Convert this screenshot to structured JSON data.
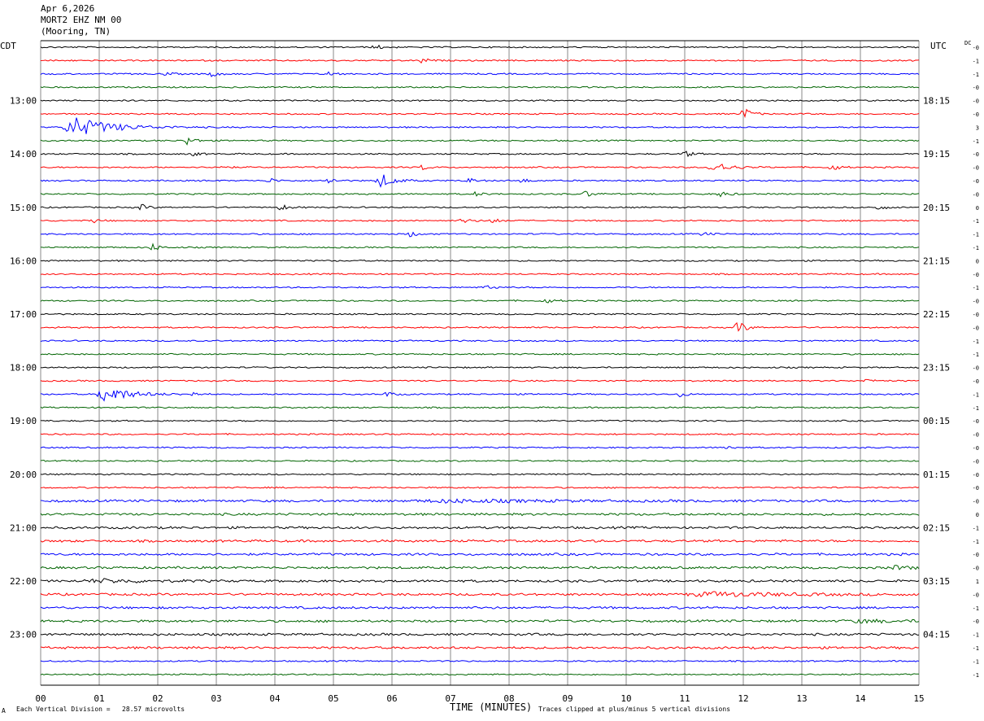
{
  "header": {
    "date": "Apr 6,2026",
    "station": "MORT2 EHZ NM 00",
    "location": "(Mooring, TN)"
  },
  "left_tz": "CDT",
  "right_tz": "UTC",
  "dc_label": "DC",
  "footer": {
    "scale_note": "Each Vertical Division =   28.57 microvolts",
    "clip_note": "Traces clipped at plus/minus 5 vertical divisions",
    "corner_mark": "A"
  },
  "colors": {
    "trace_cycle": [
      "#000000",
      "#ff0000",
      "#0000ff",
      "#006400"
    ],
    "grid": "#888888"
  },
  "chart_data": {
    "type": "line",
    "title": "",
    "xlabel": "TIME (MINUTES)",
    "x_ticks": [
      "00",
      "01",
      "02",
      "03",
      "04",
      "05",
      "06",
      "07",
      "08",
      "09",
      "10",
      "11",
      "12",
      "13",
      "14",
      "15"
    ],
    "xlim": [
      0,
      15
    ],
    "rows_per_hour": 4,
    "minutes_per_row": 15,
    "left_hour_labels": [
      "13:00",
      "14:00",
      "15:00",
      "16:00",
      "17:00",
      "18:00",
      "19:00",
      "20:00",
      "21:00",
      "22:00",
      "23:00"
    ],
    "right_hour_labels": [
      "18:15",
      "19:15",
      "20:15",
      "21:15",
      "22:15",
      "23:15",
      "00:15",
      "01:15",
      "02:15",
      "03:15",
      "04:15"
    ],
    "dc_offsets": [
      "-0",
      "-1",
      "-1",
      "-0",
      "-0",
      "-0",
      "3",
      "-1",
      "-0",
      "-0",
      "-0",
      "-0",
      "0",
      "-1",
      "-1",
      "-1",
      "0",
      "-0",
      "-1",
      "-0",
      "-0",
      "-0",
      "-1",
      "-1",
      "-0",
      "-0",
      "-1",
      "-1",
      "-0",
      "-0",
      "-0",
      "-0",
      "-0",
      "-0",
      "-0",
      "0",
      "-1",
      "-1",
      "-0",
      "-0",
      "1",
      "-0",
      "-1",
      "-0",
      "-1",
      "-1",
      "-1",
      "-1"
    ],
    "grid": true,
    "events": [
      {
        "row": 0,
        "minute": 5.7,
        "amp": 0.8
      },
      {
        "row": 1,
        "minute": 6.5,
        "amp": 0.8
      },
      {
        "row": 2,
        "minute": 2.1,
        "amp": 0.6
      },
      {
        "row": 2,
        "minute": 2.9,
        "amp": 0.9
      },
      {
        "row": 2,
        "minute": 4.9,
        "amp": 0.8
      },
      {
        "row": 5,
        "minute": 12.0,
        "amp": 2.2
      },
      {
        "row": 6,
        "minute": 0.6,
        "amp": 3.0,
        "width": 0.9
      },
      {
        "row": 7,
        "minute": 2.5,
        "amp": 1.4
      },
      {
        "row": 8,
        "minute": 11.0,
        "amp": 1.0
      },
      {
        "row": 8,
        "minute": 2.6,
        "amp": 0.6
      },
      {
        "row": 9,
        "minute": 11.5,
        "amp": 1.6,
        "width": 0.4
      },
      {
        "row": 9,
        "minute": 13.5,
        "amp": 1.2
      },
      {
        "row": 9,
        "minute": 3.0,
        "amp": 0.8
      },
      {
        "row": 9,
        "minute": 6.5,
        "amp": 0.8
      },
      {
        "row": 10,
        "minute": 5.8,
        "amp": 2.4,
        "width": 0.3
      },
      {
        "row": 10,
        "minute": 4.9,
        "amp": 1.0
      },
      {
        "row": 10,
        "minute": 3.9,
        "amp": 0.8
      },
      {
        "row": 10,
        "minute": 7.3,
        "amp": 0.8
      },
      {
        "row": 10,
        "minute": 8.2,
        "amp": 0.7
      },
      {
        "row": 10,
        "minute": 15.0,
        "amp": 1.0
      },
      {
        "row": 11,
        "minute": 9.3,
        "amp": 1.0
      },
      {
        "row": 11,
        "minute": 11.6,
        "amp": 1.0
      },
      {
        "row": 11,
        "minute": 7.4,
        "amp": 0.8
      },
      {
        "row": 12,
        "minute": 1.7,
        "amp": 1.0
      },
      {
        "row": 12,
        "minute": 4.1,
        "amp": 1.0
      },
      {
        "row": 12,
        "minute": 14.3,
        "amp": 0.8
      },
      {
        "row": 13,
        "minute": 7.2,
        "amp": 0.9
      },
      {
        "row": 13,
        "minute": 7.7,
        "amp": 0.8
      },
      {
        "row": 13,
        "minute": 0.9,
        "amp": 0.6
      },
      {
        "row": 14,
        "minute": 6.3,
        "amp": 0.8
      },
      {
        "row": 14,
        "minute": 11.3,
        "amp": 0.6
      },
      {
        "row": 15,
        "minute": 1.9,
        "amp": 1.2
      },
      {
        "row": 18,
        "minute": 7.6,
        "amp": 0.9
      },
      {
        "row": 19,
        "minute": 8.6,
        "amp": 0.9
      },
      {
        "row": 21,
        "minute": 11.9,
        "amp": 2.4
      },
      {
        "row": 25,
        "minute": 14.1,
        "amp": 0.6
      },
      {
        "row": 26,
        "minute": 1.1,
        "amp": 2.6,
        "width": 0.6
      },
      {
        "row": 26,
        "minute": 5.9,
        "amp": 0.8
      },
      {
        "row": 26,
        "minute": 2.6,
        "amp": 0.6
      },
      {
        "row": 26,
        "minute": 10.9,
        "amp": 0.8
      },
      {
        "row": 30,
        "minute": 11.7,
        "amp": 0.6
      },
      {
        "row": 40,
        "minute": 1.0,
        "amp": 0.5,
        "width": 1.2
      },
      {
        "row": 41,
        "minute": 11.5,
        "amp": 0.6,
        "width": 2.0
      },
      {
        "row": 34,
        "minute": 7.0,
        "amp": 0.4,
        "width": 2.5
      },
      {
        "row": 39,
        "minute": 14.6,
        "amp": 0.5,
        "width": 0.6
      },
      {
        "row": 43,
        "minute": 14.0,
        "amp": 0.4,
        "width": 1.2
      }
    ]
  }
}
